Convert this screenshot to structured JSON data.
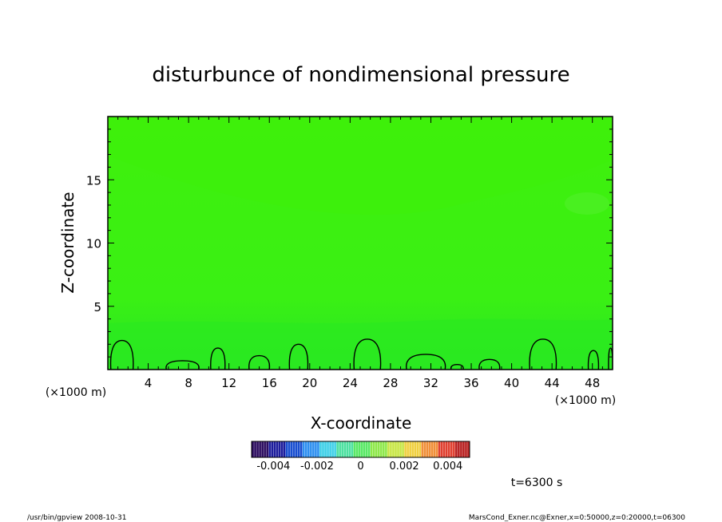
{
  "chart_data": {
    "type": "heatmap",
    "title": "disturbunce of nondimensional pressure",
    "xlabel": "X-coordinate",
    "ylabel": "Z-coordinate",
    "x_scale_note": "(×1000 m)",
    "y_scale_note": "(×1000 m)",
    "xlim": [
      0,
      50
    ],
    "ylim": [
      0,
      20
    ],
    "x_ticks": [
      4,
      8,
      12,
      16,
      20,
      24,
      28,
      32,
      36,
      40,
      44,
      48
    ],
    "y_ticks": [
      5,
      10,
      15
    ],
    "colorbar": {
      "min": -0.005,
      "max": 0.005,
      "tick_values": [
        -0.004,
        -0.002,
        0,
        0.002,
        0.004
      ],
      "tick_labels": [
        "-0.004",
        "-0.002",
        "0",
        "0.002",
        "0.004"
      ],
      "colors": [
        "#2a0a5e",
        "#1d1d9c",
        "#1a4fd0",
        "#2d8ff0",
        "#3fd0e8",
        "#4de0a0",
        "#5ae866",
        "#8ee84a",
        "#c8e646",
        "#f0d040",
        "#f0903a",
        "#e04030",
        "#b81f1f"
      ]
    },
    "field_colors": {
      "upper": "#3ff00c",
      "lower": "#2ee81c",
      "blob": "#55f030"
    },
    "zero_contour_bumps": [
      {
        "x": [
          0.3,
          2.5
        ],
        "top": 2.3
      },
      {
        "x": [
          5.8,
          9.0
        ],
        "top": 0.7
      },
      {
        "x": [
          10.2,
          11.6
        ],
        "top": 1.7
      },
      {
        "x": [
          14.0,
          16.0
        ],
        "top": 1.1
      },
      {
        "x": [
          18.0,
          19.8
        ],
        "top": 2.0
      },
      {
        "x": [
          24.4,
          27.0
        ],
        "top": 2.4
      },
      {
        "x": [
          29.6,
          33.4
        ],
        "top": 1.2
      },
      {
        "x": [
          34.0,
          35.2
        ],
        "top": 0.4
      },
      {
        "x": [
          36.8,
          38.8
        ],
        "top": 0.8
      },
      {
        "x": [
          41.8,
          44.4
        ],
        "top": 2.4
      },
      {
        "x": [
          47.6,
          48.6
        ],
        "top": 1.5
      },
      {
        "x": [
          49.6,
          50.0
        ],
        "top": 1.7
      }
    ]
  },
  "time_label": "t=6300 s",
  "footer_left": "/usr/bin/gpview  2008-10-31",
  "footer_right": "MarsCond_Exner.nc@Exner,x=0:50000,z=0:20000,t=06300"
}
